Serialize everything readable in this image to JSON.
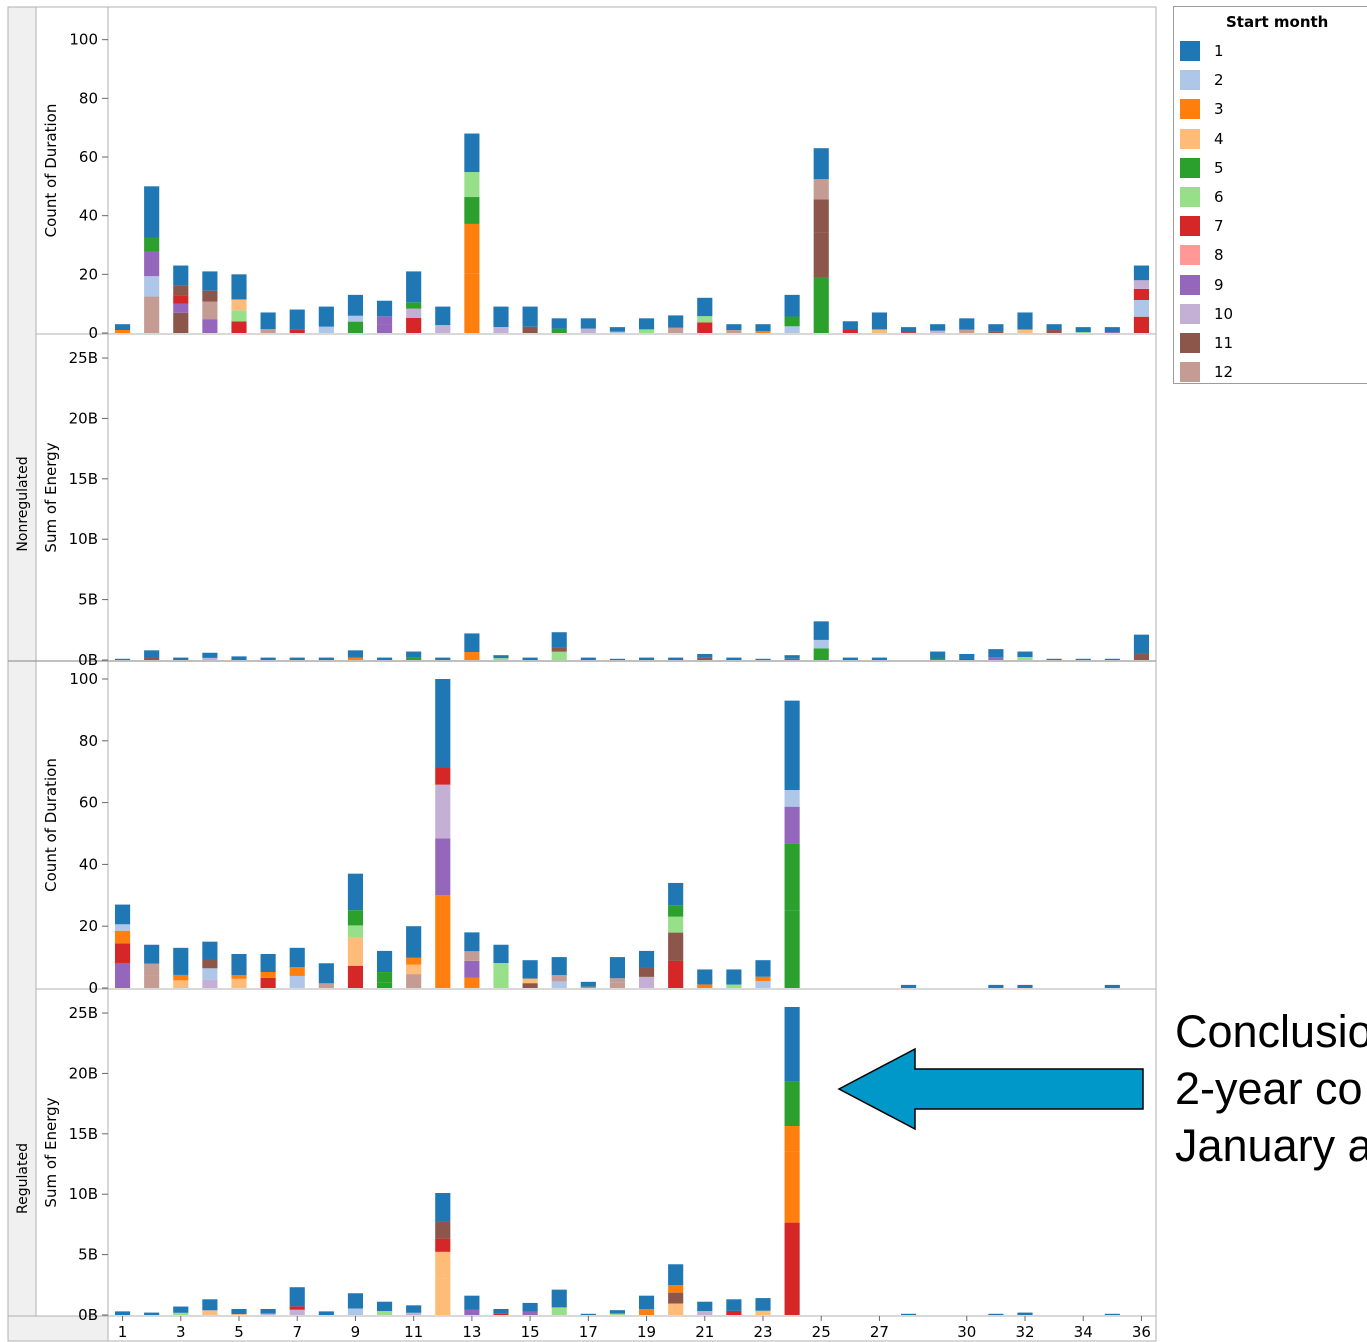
{
  "legend": {
    "title": "Start month",
    "items": [
      {
        "label": "1",
        "color": "#1f77b4"
      },
      {
        "label": "2",
        "color": "#aec7e8"
      },
      {
        "label": "3",
        "color": "#ff7f0e"
      },
      {
        "label": "4",
        "color": "#ffbb78"
      },
      {
        "label": "5",
        "color": "#2ca02c"
      },
      {
        "label": "6",
        "color": "#98df8a"
      },
      {
        "label": "7",
        "color": "#d62728"
      },
      {
        "label": "8",
        "color": "#ff9896"
      },
      {
        "label": "9",
        "color": "#9467bd"
      },
      {
        "label": "10",
        "color": "#c5b0d5"
      },
      {
        "label": "11",
        "color": "#8c564b"
      },
      {
        "label": "12",
        "color": "#c49c94"
      }
    ]
  },
  "annotation": {
    "line1": "Conclusio",
    "line2": "2-year co",
    "line3": "January a"
  },
  "chart_data": {
    "type": "bar",
    "stacked": true,
    "x": [
      1,
      2,
      3,
      4,
      5,
      6,
      7,
      8,
      9,
      10,
      11,
      12,
      13,
      14,
      15,
      16,
      17,
      18,
      19,
      20,
      21,
      22,
      23,
      24,
      25,
      26,
      27,
      28,
      29,
      30,
      31,
      32,
      33,
      34,
      35,
      36
    ],
    "x_ticks": [
      1,
      3,
      5,
      7,
      9,
      11,
      13,
      15,
      17,
      19,
      21,
      23,
      25,
      27,
      30,
      32,
      34,
      36
    ],
    "row_headers": [
      "Nonregulated",
      "Regulated"
    ],
    "panels": [
      {
        "row": "Nonregulated",
        "ylabel": "Count of Duration",
        "yticks": [
          "0",
          "20",
          "40",
          "60",
          "80",
          "100"
        ],
        "ylim": [
          0,
          105
        ],
        "totals": [
          3,
          50,
          23,
          21,
          20,
          7,
          8,
          9,
          13,
          11,
          21,
          9,
          68,
          9,
          9,
          5,
          5,
          2,
          5,
          6,
          12,
          3,
          3,
          13,
          63,
          4,
          7,
          2,
          3,
          5,
          3,
          7,
          3,
          2,
          2,
          23
        ]
      },
      {
        "row": "Nonregulated",
        "ylabel": "Sum of Energy",
        "yticks": [
          "0B",
          "5B",
          "10B",
          "15B",
          "20B",
          "25B"
        ],
        "ylim": [
          0,
          25.5
        ],
        "totals": [
          0.1,
          0.8,
          0.2,
          0.6,
          0.3,
          0.2,
          0.2,
          0.2,
          0.8,
          0.2,
          0.7,
          0.2,
          2.2,
          0.4,
          0.2,
          2.3,
          0.2,
          0.1,
          0.2,
          0.2,
          0.5,
          0.2,
          0.1,
          0.4,
          3.2,
          0.2,
          0.2,
          0.0,
          0.7,
          0.5,
          0.9,
          0.7,
          0.1,
          0.1,
          0.1,
          2.1
        ]
      },
      {
        "row": "Regulated",
        "ylabel": "Count of Duration",
        "yticks": [
          "0",
          "20",
          "40",
          "60",
          "80",
          "100"
        ],
        "ylim": [
          0,
          100
        ],
        "totals": [
          27,
          14,
          13,
          15,
          11,
          11,
          13,
          8,
          37,
          12,
          20,
          100,
          18,
          14,
          9,
          10,
          2,
          10,
          12,
          34,
          6,
          6,
          9,
          93,
          0,
          0,
          0,
          1,
          0,
          0,
          1,
          1,
          0,
          0,
          1,
          0
        ]
      },
      {
        "row": "Regulated",
        "ylabel": "Sum of Energy",
        "yticks": [
          "0B",
          "5B",
          "10B",
          "15B",
          "20B",
          "25B"
        ],
        "ylim": [
          0,
          25.5
        ],
        "totals": [
          0.3,
          0.2,
          0.7,
          1.3,
          0.5,
          0.5,
          2.3,
          0.3,
          1.8,
          1.1,
          0.8,
          10.1,
          1.6,
          0.5,
          1.0,
          2.1,
          0.1,
          0.4,
          1.6,
          4.2,
          1.1,
          1.3,
          1.4,
          25.5,
          0,
          0,
          0,
          0.1,
          0,
          0,
          0.1,
          0.2,
          0,
          0,
          0.1,
          0
        ]
      }
    ],
    "legend_position": "right"
  }
}
